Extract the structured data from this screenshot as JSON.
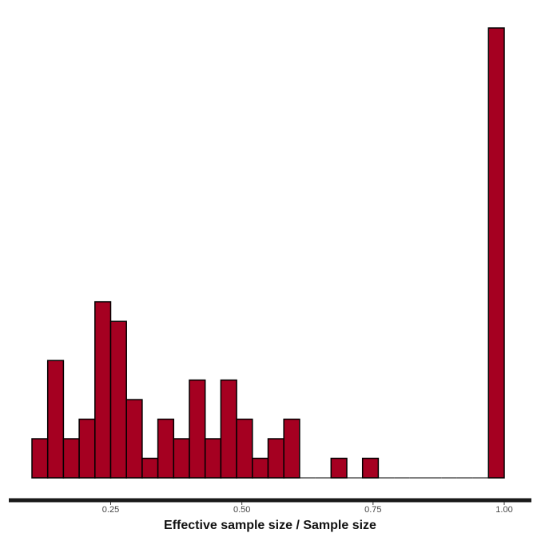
{
  "chart_data": {
    "type": "bar",
    "title": "",
    "xlabel": "Effective sample size / Sample size",
    "ylabel": "",
    "xlim": [
      0.09,
      1.02
    ],
    "ylim": [
      0,
      23
    ],
    "grid": false,
    "legend": "none",
    "bar_color": "#a50021",
    "bar_edge_color": "#000000",
    "axis_color": "#1a1a1a",
    "x_ticks": [
      {
        "value": 0.25,
        "label": "0.25"
      },
      {
        "value": 0.5,
        "label": "0.50"
      },
      {
        "value": 0.75,
        "label": "0.75"
      },
      {
        "value": 1.0,
        "label": "1.00"
      }
    ],
    "bins": [
      {
        "x0": 0.1,
        "x1": 0.13,
        "count": 2
      },
      {
        "x0": 0.13,
        "x1": 0.16,
        "count": 6
      },
      {
        "x0": 0.16,
        "x1": 0.19,
        "count": 2
      },
      {
        "x0": 0.19,
        "x1": 0.22,
        "count": 3
      },
      {
        "x0": 0.22,
        "x1": 0.25,
        "count": 9
      },
      {
        "x0": 0.25,
        "x1": 0.28,
        "count": 8
      },
      {
        "x0": 0.28,
        "x1": 0.31,
        "count": 4
      },
      {
        "x0": 0.31,
        "x1": 0.34,
        "count": 1
      },
      {
        "x0": 0.34,
        "x1": 0.37,
        "count": 3
      },
      {
        "x0": 0.37,
        "x1": 0.4,
        "count": 2
      },
      {
        "x0": 0.4,
        "x1": 0.43,
        "count": 5
      },
      {
        "x0": 0.43,
        "x1": 0.46,
        "count": 2
      },
      {
        "x0": 0.46,
        "x1": 0.49,
        "count": 5
      },
      {
        "x0": 0.49,
        "x1": 0.52,
        "count": 3
      },
      {
        "x0": 0.52,
        "x1": 0.55,
        "count": 1
      },
      {
        "x0": 0.55,
        "x1": 0.58,
        "count": 2
      },
      {
        "x0": 0.58,
        "x1": 0.61,
        "count": 3
      },
      {
        "x0": 0.61,
        "x1": 0.64,
        "count": 0
      },
      {
        "x0": 0.64,
        "x1": 0.67,
        "count": 0
      },
      {
        "x0": 0.67,
        "x1": 0.7,
        "count": 1
      },
      {
        "x0": 0.7,
        "x1": 0.73,
        "count": 0
      },
      {
        "x0": 0.73,
        "x1": 0.76,
        "count": 1
      },
      {
        "x0": 0.76,
        "x1": 0.79,
        "count": 0
      },
      {
        "x0": 0.79,
        "x1": 0.82,
        "count": 0
      },
      {
        "x0": 0.82,
        "x1": 0.85,
        "count": 0
      },
      {
        "x0": 0.85,
        "x1": 0.88,
        "count": 0
      },
      {
        "x0": 0.88,
        "x1": 0.91,
        "count": 0
      },
      {
        "x0": 0.91,
        "x1": 0.94,
        "count": 0
      },
      {
        "x0": 0.94,
        "x1": 0.97,
        "count": 0
      },
      {
        "x0": 0.97,
        "x1": 1.0,
        "count": 23
      }
    ]
  }
}
